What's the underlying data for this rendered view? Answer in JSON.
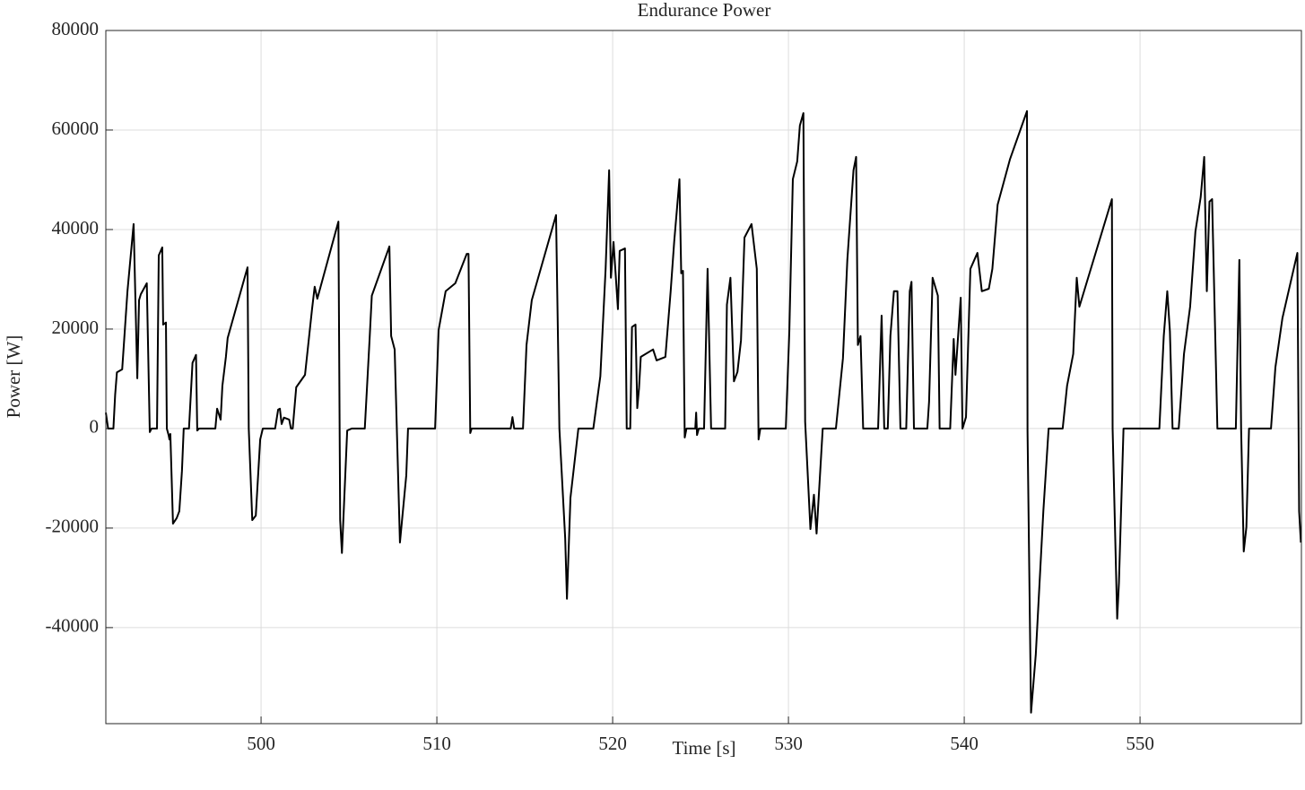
{
  "chart_data": {
    "type": "line",
    "title": "Endurance Power",
    "x_label": "Time [s]",
    "y_label": "Power [W]",
    "xlim": [
      491.17,
      559.18
    ],
    "ylim": [
      -59300,
      80000
    ],
    "xticks": [
      500,
      510,
      520,
      530,
      540,
      550
    ],
    "yticks": [
      -40000,
      -20000,
      0,
      20000,
      40000,
      60000,
      80000
    ],
    "grid": true,
    "series": [
      {
        "color": "#000000",
        "x": [
          491.17,
          491.3,
          491.6,
          491.7,
          491.8,
          492.1,
          492.4,
          492.75,
          492.96,
          493.06,
          493.16,
          493.5,
          493.67,
          493.77,
          494.08,
          494.18,
          494.38,
          494.43,
          494.59,
          494.64,
          494.74,
          494.79,
          494.84,
          494.99,
          495.2,
          495.35,
          495.5,
          495.6,
          495.9,
          496.1,
          496.3,
          496.37,
          496.47,
          497.4,
          497.5,
          497.7,
          497.8,
          498.0,
          498.1,
          499.23,
          499.3,
          499.5,
          499.7,
          499.95,
          500.1,
          500.8,
          500.97,
          501.07,
          501.17,
          501.3,
          501.6,
          501.7,
          501.8,
          502.0,
          502.5,
          502.9,
          503.05,
          503.2,
          504.4,
          504.5,
          504.6,
          504.9,
          505.15,
          505.9,
          506.17,
          506.3,
          507.3,
          507.4,
          507.6,
          507.9,
          508.26,
          508.36,
          509.9,
          510.1,
          510.5,
          511.05,
          511.7,
          511.8,
          511.9,
          511.98,
          514.2,
          514.3,
          514.4,
          514.9,
          515.1,
          515.4,
          516.78,
          516.97,
          517.3,
          517.4,
          517.6,
          518.05,
          518.9,
          519.3,
          519.6,
          519.8,
          519.9,
          520.05,
          520.3,
          520.4,
          520.7,
          520.8,
          521.0,
          521.1,
          521.3,
          521.4,
          521.5,
          521.6,
          522.3,
          522.5,
          523.0,
          523.3,
          523.5,
          523.8,
          523.9,
          524.0,
          524.1,
          524.2,
          524.7,
          524.75,
          524.8,
          524.9,
          525.2,
          525.4,
          525.6,
          526.4,
          526.5,
          526.7,
          526.9,
          527.1,
          527.3,
          527.5,
          527.9,
          528.2,
          528.3,
          528.4,
          529.85,
          530.05,
          530.25,
          530.5,
          530.65,
          530.85,
          530.95,
          531.25,
          531.45,
          531.6,
          531.95,
          532.7,
          533.1,
          533.35,
          533.7,
          533.85,
          533.95,
          534.1,
          534.25,
          535.1,
          535.3,
          535.45,
          535.65,
          535.8,
          536.0,
          536.2,
          536.37,
          536.7,
          536.9,
          537.0,
          537.14,
          537.9,
          538.0,
          538.2,
          538.5,
          538.6,
          539.2,
          539.4,
          539.5,
          539.8,
          539.9,
          540.1,
          540.35,
          540.75,
          541.0,
          541.4,
          541.6,
          541.9,
          542.6,
          543.57,
          543.6,
          543.8,
          544.07,
          544.5,
          544.8,
          545.6,
          545.85,
          546.2,
          546.4,
          546.55,
          548.4,
          548.44,
          548.7,
          548.8,
          549.06,
          551.1,
          551.35,
          551.55,
          551.7,
          551.85,
          552.2,
          552.5,
          552.85,
          553.15,
          553.45,
          553.65,
          553.8,
          553.95,
          554.1,
          554.4,
          555.45,
          555.65,
          555.75,
          555.9,
          556.05,
          556.2,
          557.45,
          557.7,
          558.1,
          558.95,
          559.05,
          559.15
        ],
        "values": [
          3200,
          0,
          0,
          6800,
          11300,
          11900,
          27600,
          41100,
          10100,
          25800,
          27000,
          29200,
          -700,
          0,
          0,
          34800,
          36400,
          20900,
          21300,
          0,
          -1300,
          -2200,
          -1100,
          -19100,
          -18000,
          -16600,
          -8500,
          0,
          0,
          13200,
          14800,
          -400,
          0,
          0,
          4000,
          1800,
          8600,
          14400,
          18200,
          32400,
          0,
          -18400,
          -17500,
          -2200,
          0,
          0,
          3800,
          4000,
          900,
          2200,
          1800,
          0,
          0,
          8300,
          10800,
          24000,
          28500,
          26100,
          41600,
          -18400,
          -25000,
          -400,
          0,
          0,
          17700,
          26700,
          36600,
          18600,
          15900,
          -22900,
          -9400,
          0,
          0,
          19800,
          27600,
          29200,
          35100,
          35100,
          -900,
          0,
          0,
          2300,
          0,
          0,
          16800,
          25800,
          42900,
          0,
          -22000,
          -34200,
          -13900,
          0,
          0,
          10500,
          32100,
          51900,
          30300,
          37500,
          24000,
          35700,
          36200,
          0,
          0,
          20400,
          20900,
          4100,
          8100,
          14400,
          15900,
          13700,
          14400,
          27600,
          37500,
          50100,
          31200,
          31700,
          -1800,
          0,
          0,
          3200,
          -1300,
          0,
          0,
          32100,
          0,
          0,
          24900,
          30300,
          9500,
          11400,
          17700,
          38400,
          41100,
          32100,
          -2200,
          0,
          0,
          19500,
          50100,
          53700,
          60900,
          63400,
          1400,
          -20200,
          -13300,
          -21100,
          0,
          0,
          14100,
          33900,
          51900,
          54600,
          16800,
          18600,
          0,
          0,
          22700,
          0,
          0,
          18600,
          27600,
          27600,
          0,
          0,
          27600,
          29500,
          0,
          0,
          5400,
          30300,
          26700,
          0,
          0,
          18000,
          10800,
          26300,
          0,
          2300,
          32100,
          35300,
          27600,
          28100,
          32100,
          45000,
          54100,
          63800,
          -400,
          -57100,
          -45400,
          -16600,
          0,
          0,
          8600,
          15000,
          30300,
          24500,
          46100,
          0,
          -38200,
          -31000,
          0,
          0,
          18600,
          27600,
          19500,
          0,
          0,
          15000,
          24500,
          39600,
          46500,
          54600,
          27600,
          45600,
          46100,
          0,
          0,
          33900,
          0,
          -24700,
          -19800,
          0,
          0,
          12300,
          22200,
          35300,
          -16600,
          -22900
        ]
      }
    ]
  }
}
